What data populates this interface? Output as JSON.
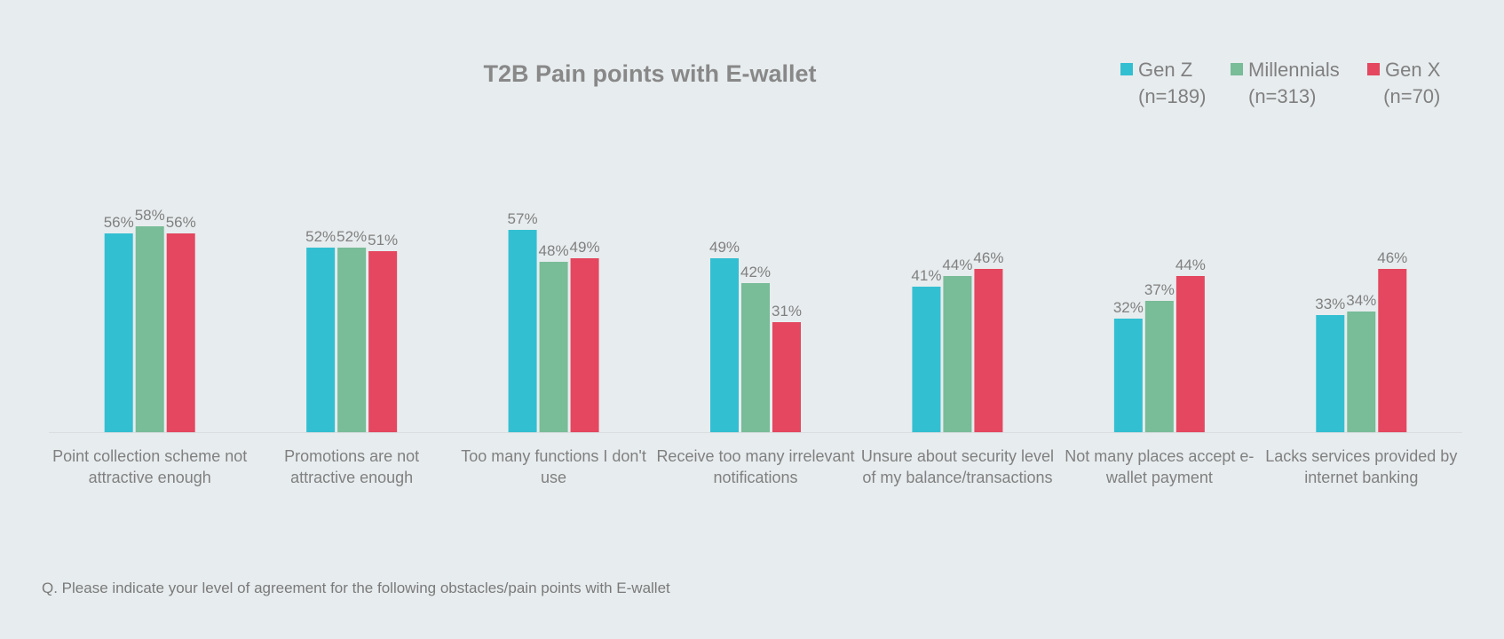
{
  "chart_data": {
    "type": "bar",
    "title": "T2B Pain points with E-wallet",
    "categories": [
      [
        "Point collection scheme not",
        "attractive enough"
      ],
      [
        "Promotions are not",
        "attractive enough"
      ],
      [
        "Too many functions I don't",
        "use"
      ],
      [
        "Receive too many irrelevant",
        "notifications"
      ],
      [
        "Unsure about security level",
        "of my balance/transactions"
      ],
      [
        "Not many places accept e-",
        "wallet payment"
      ],
      [
        "Lacks services provided by",
        "internet banking"
      ]
    ],
    "series": [
      {
        "name": "Gen Z",
        "n_label": "(n=189)",
        "color": "#33bfd2",
        "values": [
          56,
          52,
          57,
          49,
          41,
          32,
          33
        ]
      },
      {
        "name": "Millennials",
        "n_label": "(n=313)",
        "color": "#78bc98",
        "values": [
          58,
          52,
          48,
          42,
          44,
          37,
          34
        ]
      },
      {
        "name": "Gen X",
        "n_label": "(n=70)",
        "color": "#e4475f",
        "values": [
          56,
          51,
          49,
          31,
          46,
          44,
          46
        ]
      }
    ],
    "value_suffix": "%",
    "ylim": [
      0,
      65
    ],
    "grid": false,
    "legend_position": "top-right"
  },
  "footnote": "Q. Please indicate your level of agreement for the following obstacles/pain points with E-wallet"
}
